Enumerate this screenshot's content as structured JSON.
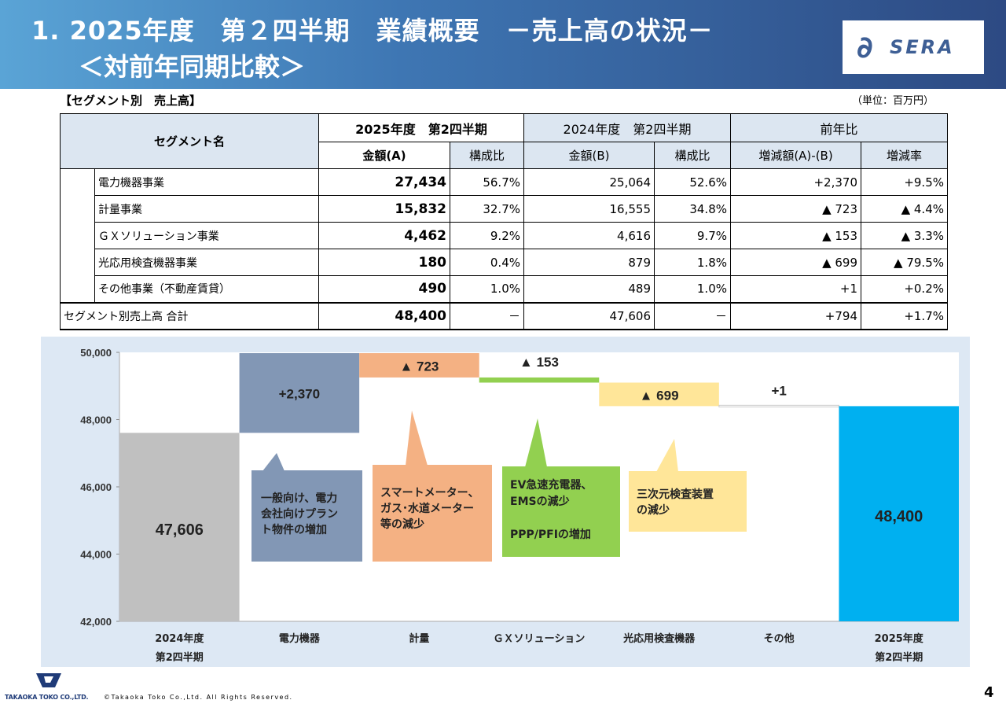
{
  "header": {
    "title_line1": "1. 2025年度　第２四半期　業績概要　－売上高の状況－",
    "title_line2": "＜対前年同期比較＞",
    "logo_text": "SERA",
    "logo_mark": "∂"
  },
  "section_title": "【セグメント別　売上高】",
  "unit_label": "（単位：百万円）",
  "table": {
    "headers": {
      "segment": "セグメント名",
      "fy2025": "2025年度　第2四半期",
      "fy2024": "2024年度　第2四半期",
      "yoy": "前年比",
      "amount_a": "金額(A)",
      "ratio": "構成比",
      "amount_b": "金額(B)",
      "ratio_b": "構成比",
      "diff": "増減額(A)-(B)",
      "rate": "増減率"
    },
    "rows": [
      {
        "name": "電力機器事業",
        "a": "27,434",
        "ar": "56.7%",
        "b": "25,064",
        "br": "52.6%",
        "d": "+2,370",
        "r": "+9.5%"
      },
      {
        "name": "計量事業",
        "a": "15,832",
        "ar": "32.7%",
        "b": "16,555",
        "br": "34.8%",
        "d": "▲ 723",
        "r": "▲ 4.4%"
      },
      {
        "name": "ＧＸソリューション事業",
        "a": "4,462",
        "ar": "9.2%",
        "b": "4,616",
        "br": "9.7%",
        "d": "▲ 153",
        "r": "▲ 3.3%"
      },
      {
        "name": "光応用検査機器事業",
        "a": "180",
        "ar": "0.4%",
        "b": "879",
        "br": "1.8%",
        "d": "▲ 699",
        "r": "▲ 79.5%"
      },
      {
        "name": "その他事業（不動産賃貸）",
        "a": "490",
        "ar": "1.0%",
        "b": "489",
        "br": "1.0%",
        "d": "+1",
        "r": "+0.2%"
      }
    ],
    "total": {
      "name": "セグメント別売上高 合計",
      "a": "48,400",
      "ar": "－",
      "b": "47,606",
      "br": "－",
      "d": "+794",
      "r": "+1.7%"
    }
  },
  "chart_data": {
    "type": "waterfall",
    "ylim": [
      42000,
      50000
    ],
    "yticks": [
      "42,000",
      "44,000",
      "46,000",
      "48,000",
      "50,000"
    ],
    "categories": [
      {
        "l1": "2024年度",
        "l2": "第2四半期"
      },
      {
        "l1": "電力機器",
        "l2": ""
      },
      {
        "l1": "計量",
        "l2": ""
      },
      {
        "l1": "ＧＸソリューション",
        "l2": ""
      },
      {
        "l1": "光応用検査機器",
        "l2": ""
      },
      {
        "l1": "その他",
        "l2": ""
      },
      {
        "l1": "2025年度",
        "l2": "第2四半期"
      }
    ],
    "start": 47606,
    "steps": [
      2370,
      -723,
      -153,
      -699,
      1
    ],
    "end": 48400,
    "labels": [
      "47,606",
      "+2,370",
      "▲ 723",
      "▲ 153",
      "▲ 699",
      "+1",
      "48,400"
    ],
    "colors": [
      "#c0c0c0",
      "#8297b5",
      "#f4b183",
      "#92d050",
      "#ffe699",
      "#ffffff",
      "#00b0f0"
    ],
    "callouts": [
      {
        "lines": [
          "一般向け、電力",
          "会社向けプラン",
          "ト物件の増加"
        ],
        "color": "#8297b5"
      },
      {
        "lines": [
          "スマートメーター、",
          "ガス･水道メーター",
          "等の減少"
        ],
        "color": "#f4b183"
      },
      {
        "lines": [
          "EV急速充電器、",
          "EMSの減少",
          "",
          "PPP/PFIの増加"
        ],
        "color": "#92d050"
      },
      {
        "lines": [
          "三次元検査装置",
          "の減少"
        ],
        "color": "#ffe699"
      }
    ]
  },
  "footer": {
    "company": "TAKAOKA TOKO CO.,LTD.",
    "copyright": "©Takaoka Toko Co.,Ltd. All Rights Reserved.",
    "page_number": "4"
  }
}
